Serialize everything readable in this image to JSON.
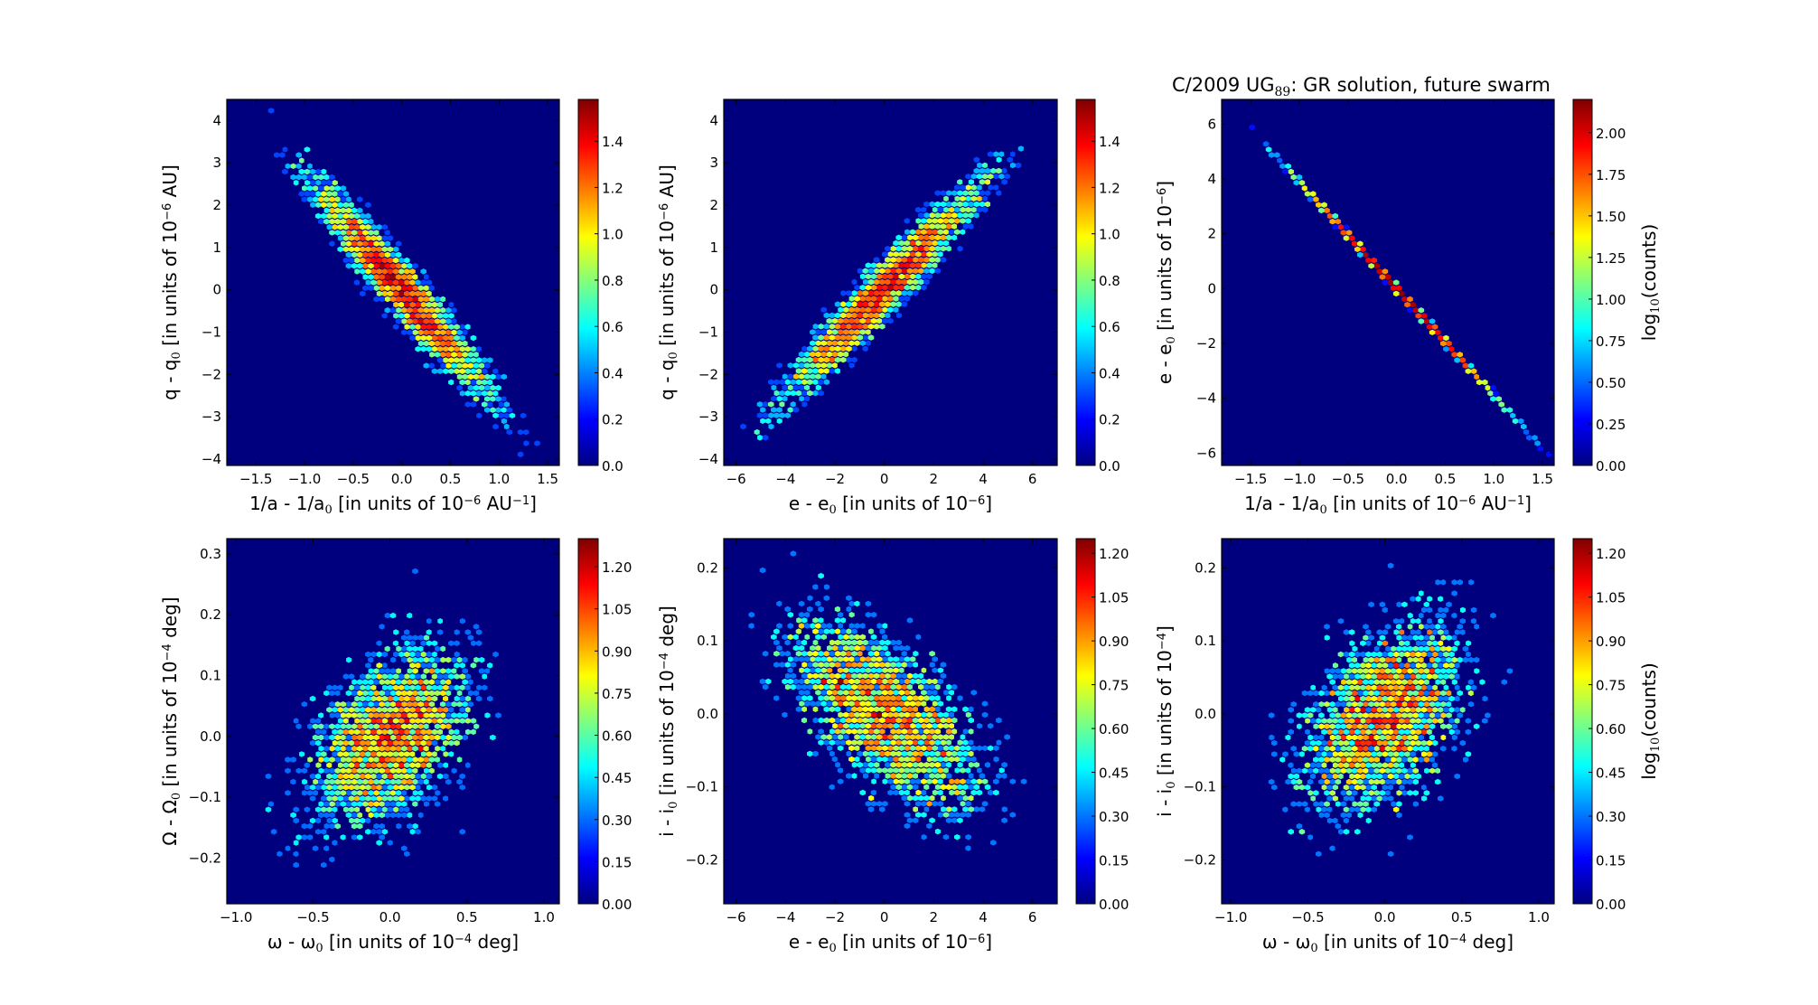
{
  "figure_title": {
    "prefix": "C/2009 UG",
    "subscript": "89",
    "suffix": ":  GR solution, future swarm"
  },
  "colormap": [
    "#00007f",
    "#0000ff",
    "#007fff",
    "#00ffff",
    "#7fff7f",
    "#ffff00",
    "#ff7f00",
    "#ff0000",
    "#7f0000"
  ],
  "background_color": "#00007f",
  "chart_data": [
    {
      "type": "heatmap",
      "subtype": "hexbin",
      "panel": "top-left",
      "xlabel": {
        "main": "1/a - 1/a",
        "sub": "0",
        "rest": " [in units of 10",
        "sup": "−6",
        "tail": " AU",
        "sup2": "−1",
        "end": "]"
      },
      "ylabel": {
        "main": "q - q",
        "sub": "0",
        "rest": "  [in units of 10",
        "sup": "−6",
        "tail": "  AU]"
      },
      "xlim": [
        -1.8,
        1.62
      ],
      "ylim": [
        -4.15,
        4.5
      ],
      "xticks": [
        -1.5,
        -1.0,
        -0.5,
        0.0,
        0.5,
        1.0,
        1.5
      ],
      "xtick_labels": [
        "−1.5",
        "−1.0",
        "−0.5",
        "0.0",
        "0.5",
        "1.0",
        "1.5"
      ],
      "yticks": [
        -4,
        -3,
        -2,
        -1,
        0,
        1,
        2,
        3,
        4
      ],
      "ytick_labels": [
        "−4",
        "−3",
        "−2",
        "−1",
        "0",
        "1",
        "2",
        "3",
        "4"
      ],
      "colorbar": {
        "range": [
          0,
          1.58
        ],
        "ticks": [
          0.0,
          0.2,
          0.4,
          0.6,
          0.8,
          1.0,
          1.2,
          1.4
        ],
        "tick_labels": [
          "0.0",
          "0.2",
          "0.4",
          "0.6",
          "0.8",
          "1.0",
          "1.2",
          "1.4"
        ],
        "label": null
      },
      "distribution": {
        "x_mean": 0.0,
        "y_mean": 0.0,
        "x_sigma": 0.5,
        "y_sigma": 1.4,
        "correlation": -0.96,
        "samples": 4000,
        "gridsize": 60
      }
    },
    {
      "type": "heatmap",
      "subtype": "hexbin",
      "panel": "top-center",
      "xlabel": {
        "main": "e - e",
        "sub": "0",
        "rest": " [in units of 10",
        "sup": "−6",
        "tail": "",
        "sup2": "",
        "end": "]"
      },
      "ylabel": {
        "main": "q - q",
        "sub": "0",
        "rest": "  [in units of 10",
        "sup": "−6",
        "tail": "  AU]"
      },
      "xlim": [
        -6.5,
        7.0
      ],
      "ylim": [
        -4.15,
        4.5
      ],
      "xticks": [
        -6,
        -4,
        -2,
        0,
        2,
        4,
        6
      ],
      "xtick_labels": [
        "−6",
        "−4",
        "−2",
        "0",
        "2",
        "4",
        "6"
      ],
      "yticks": [
        -4,
        -3,
        -2,
        -1,
        0,
        1,
        2,
        3,
        4
      ],
      "ytick_labels": [
        "−4",
        "−3",
        "−2",
        "−1",
        "0",
        "1",
        "2",
        "3",
        "4"
      ],
      "colorbar": {
        "range": [
          0,
          1.58
        ],
        "ticks": [
          0.0,
          0.2,
          0.4,
          0.6,
          0.8,
          1.0,
          1.2,
          1.4
        ],
        "tick_labels": [
          "0.0",
          "0.2",
          "0.4",
          "0.6",
          "0.8",
          "1.0",
          "1.2",
          "1.4"
        ],
        "label": null
      },
      "distribution": {
        "x_mean": 0.0,
        "y_mean": 0.0,
        "x_sigma": 2.2,
        "y_sigma": 1.4,
        "correlation": 0.96,
        "samples": 4000,
        "gridsize": 60
      }
    },
    {
      "type": "heatmap",
      "subtype": "hexbin",
      "panel": "top-right",
      "xlabel": {
        "main": "1/a - 1/a",
        "sub": "0",
        "rest": " [in units of 10",
        "sup": "−6",
        "tail": " AU",
        "sup2": "−1",
        "end": "]"
      },
      "ylabel": {
        "main": "e - e",
        "sub": "0",
        "rest": " [in units of 10",
        "sup": "−6",
        "tail": "]"
      },
      "xlim": [
        -1.8,
        1.62
      ],
      "ylim": [
        -6.45,
        6.9
      ],
      "xticks": [
        -1.5,
        -1.0,
        -0.5,
        0.0,
        0.5,
        1.0,
        1.5
      ],
      "xtick_labels": [
        "−1.5",
        "−1.0",
        "−0.5",
        "0.0",
        "0.5",
        "1.0",
        "1.5"
      ],
      "yticks": [
        -6,
        -4,
        -2,
        0,
        2,
        4,
        6
      ],
      "ytick_labels": [
        "−6",
        "−4",
        "−2",
        "0",
        "2",
        "4",
        "6"
      ],
      "colorbar": {
        "range": [
          0,
          2.2
        ],
        "ticks": [
          0.0,
          0.25,
          0.5,
          0.75,
          1.0,
          1.25,
          1.5,
          1.75,
          2.0
        ],
        "tick_labels": [
          "0.00",
          "0.25",
          "0.50",
          "0.75",
          "1.00",
          "1.25",
          "1.50",
          "1.75",
          "2.00"
        ],
        "label": "log10(counts)"
      },
      "distribution": {
        "x_mean": 0.0,
        "y_mean": 0.0,
        "x_sigma": 0.5,
        "y_sigma": 1.95,
        "correlation": -0.9999,
        "samples": 4000,
        "gridsize": 60
      }
    },
    {
      "type": "heatmap",
      "subtype": "hexbin",
      "panel": "bottom-left",
      "xlabel": {
        "main": "ω - ω",
        "sub": "0",
        "rest": " [in units of 10",
        "sup": "−4",
        "tail": "  deg",
        "sup2": "",
        "end": "]"
      },
      "ylabel": {
        "main": "Ω - Ω",
        "sub": "0",
        "rest": " [in units of 10",
        "sup": "−4",
        "tail": "  deg]"
      },
      "xlim": [
        -1.06,
        1.1
      ],
      "ylim": [
        -0.275,
        0.325
      ],
      "xticks": [
        -1.0,
        -0.5,
        0.0,
        0.5,
        1.0
      ],
      "xtick_labels": [
        "−1.0",
        "−0.5",
        "0.0",
        "0.5",
        "1.0"
      ],
      "yticks": [
        -0.2,
        -0.1,
        0.0,
        0.1,
        0.2,
        0.3
      ],
      "ytick_labels": [
        "−0.2",
        "−0.1",
        "0.0",
        "0.1",
        "0.2",
        "0.3"
      ],
      "colorbar": {
        "range": [
          0,
          1.3
        ],
        "ticks": [
          0.0,
          0.15,
          0.3,
          0.45,
          0.6,
          0.75,
          0.9,
          1.05,
          1.2
        ],
        "tick_labels": [
          "0.00",
          "0.15",
          "0.30",
          "0.45",
          "0.60",
          "0.75",
          "0.90",
          "1.05",
          "1.20"
        ],
        "label": null
      },
      "distribution": {
        "x_mean": 0.0,
        "y_mean": 0.0,
        "x_sigma": 0.3,
        "y_sigma": 0.085,
        "correlation": 0.45,
        "samples": 4000,
        "gridsize": 60
      }
    },
    {
      "type": "heatmap",
      "subtype": "hexbin",
      "panel": "bottom-center",
      "xlabel": {
        "main": "e - e",
        "sub": "0",
        "rest": " [in units of 10",
        "sup": "−6",
        "tail": "",
        "sup2": "",
        "end": "]"
      },
      "ylabel": {
        "main": "i - i",
        "sub": "0",
        "rest": " [in units of 10",
        "sup": "−4",
        "tail": "  deg]"
      },
      "xlim": [
        -6.5,
        7.0
      ],
      "ylim": [
        -0.26,
        0.24
      ],
      "xticks": [
        -6,
        -4,
        -2,
        0,
        2,
        4,
        6
      ],
      "xtick_labels": [
        "−6",
        "−4",
        "−2",
        "0",
        "2",
        "4",
        "6"
      ],
      "yticks": [
        -0.2,
        -0.1,
        0.0,
        0.1,
        0.2
      ],
      "ytick_labels": [
        "−0.2",
        "−0.1",
        "0.0",
        "0.1",
        "0.2"
      ],
      "colorbar": {
        "range": [
          0,
          1.25
        ],
        "ticks": [
          0.0,
          0.15,
          0.3,
          0.45,
          0.6,
          0.75,
          0.9,
          1.05,
          1.2
        ],
        "tick_labels": [
          "0.00",
          "0.15",
          "0.30",
          "0.45",
          "0.60",
          "0.75",
          "0.90",
          "1.05",
          "1.20"
        ],
        "label": null
      },
      "distribution": {
        "x_mean": 0.0,
        "y_mean": 0.0,
        "x_sigma": 2.2,
        "y_sigma": 0.075,
        "correlation": -0.6,
        "samples": 4000,
        "gridsize": 60
      }
    },
    {
      "type": "heatmap",
      "subtype": "hexbin",
      "panel": "bottom-right",
      "xlabel": {
        "main": "ω - ω",
        "sub": "0",
        "rest": " [in units of 10",
        "sup": "−4",
        "tail": "  deg",
        "sup2": "",
        "end": "]"
      },
      "ylabel": {
        "main": "i - i",
        "sub": "0",
        "rest": " [in units of 10",
        "sup": "−4",
        "tail": "]"
      },
      "xlim": [
        -1.06,
        1.1
      ],
      "ylim": [
        -0.26,
        0.24
      ],
      "xticks": [
        -1.0,
        -0.5,
        0.0,
        0.5,
        1.0
      ],
      "xtick_labels": [
        "−1.0",
        "−0.5",
        "0.0",
        "0.5",
        "1.0"
      ],
      "yticks": [
        -0.2,
        -0.1,
        0.0,
        0.1,
        0.2
      ],
      "ytick_labels": [
        "−0.2",
        "−0.1",
        "0.0",
        "0.1",
        "0.2"
      ],
      "colorbar": {
        "range": [
          0,
          1.25
        ],
        "ticks": [
          0.0,
          0.15,
          0.3,
          0.45,
          0.6,
          0.75,
          0.9,
          1.05,
          1.2
        ],
        "tick_labels": [
          "0.00",
          "0.15",
          "0.30",
          "0.45",
          "0.60",
          "0.75",
          "0.90",
          "1.05",
          "1.20"
        ],
        "label": "log10(counts)"
      },
      "distribution": {
        "x_mean": 0.0,
        "y_mean": 0.0,
        "x_sigma": 0.3,
        "y_sigma": 0.075,
        "correlation": 0.45,
        "samples": 4000,
        "gridsize": 60
      }
    }
  ],
  "colorbar_label": {
    "main": "log",
    "sub": "10",
    "rest": "(counts)"
  }
}
